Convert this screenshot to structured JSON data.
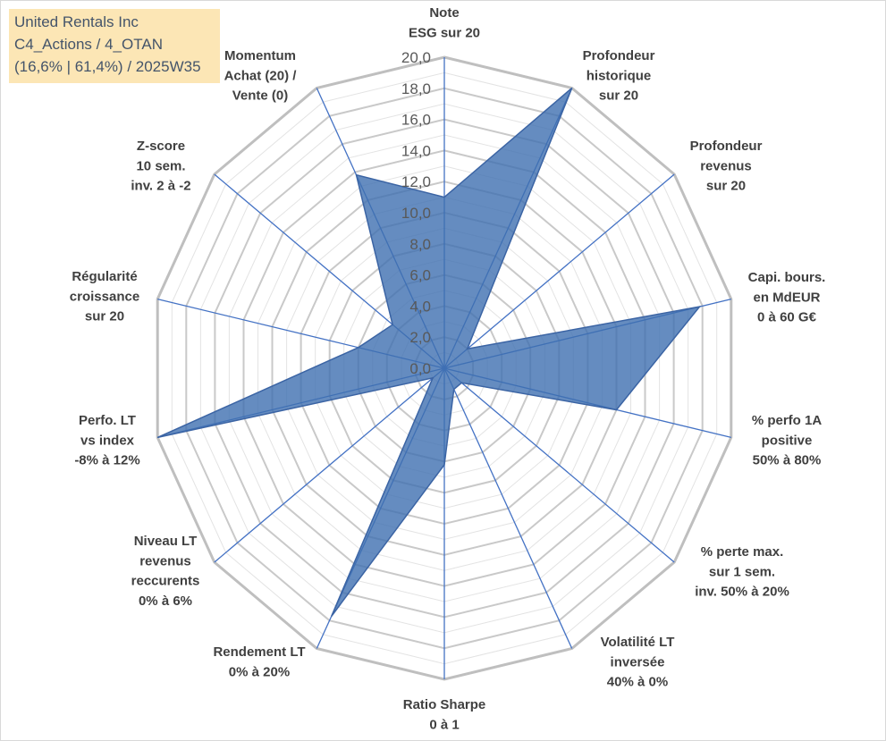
{
  "title_box": {
    "lines": [
      "United Rentals Inc",
      "C4_Actions / 4_OTAN",
      "(16,6% | 61,4%) / 2025W35"
    ],
    "background": "#fce6b5",
    "text_color": "#44546a"
  },
  "chart_data": {
    "type": "radar",
    "categories": [
      [
        "Note",
        "ESG sur 20"
      ],
      [
        "Profondeur",
        "historique",
        "sur 20"
      ],
      [
        "Profondeur",
        "revenus",
        "sur 20"
      ],
      [
        "Capi. bours.",
        "en MdEUR",
        "0 à 60 G€"
      ],
      [
        "% perfo 1A",
        "positive",
        "50% à 80%"
      ],
      [
        "% perte max.",
        "sur 1 sem.",
        "inv. 50% à 20%"
      ],
      [
        "Volatilité LT",
        "inversée",
        "40% à 0%"
      ],
      [
        "Ratio Sharpe",
        "0 à 1"
      ],
      [
        "Rendement LT",
        "0% à 20%"
      ],
      [
        "Niveau LT",
        "revenus",
        "reccurents",
        "0% à 6%"
      ],
      [
        "Perfo. LT",
        "vs index",
        "-8% à 12%"
      ],
      [
        "Régularité",
        "croissance",
        "sur 20"
      ],
      [
        "Z-score",
        "10 sem.",
        "inv. 2 à -2"
      ],
      [
        "Momentum",
        "Achat (20) /",
        "Vente (0)"
      ]
    ],
    "series": [
      {
        "values": [
          11,
          20,
          2,
          17.8,
          12,
          1.5,
          1.5,
          6.2,
          17.7,
          1,
          20,
          6,
          4.5,
          13.8
        ],
        "filled": true
      }
    ],
    "rlim": [
      0,
      20
    ],
    "r_tick_values": [
      0,
      2,
      4,
      6,
      8,
      10,
      12,
      14,
      16,
      18,
      20
    ],
    "r_tick_labels": [
      "0,0",
      "2,0",
      "4,0",
      "6,0",
      "8,0",
      "10,0",
      "12,0",
      "14,0",
      "16,0",
      "18,0",
      "20,0"
    ],
    "major_step": 2,
    "minor_step": 1,
    "grid": true,
    "legend": "none",
    "colors": {
      "series_fill": "#3f6fb0",
      "series_line": "#3b64a4",
      "axis_line": "#4472c4",
      "grid_outer": "#bfbfbf",
      "grid_major": "#c9c9c9",
      "grid_minor": "#e3e3e3",
      "frame": "#d9d9d9"
    }
  }
}
